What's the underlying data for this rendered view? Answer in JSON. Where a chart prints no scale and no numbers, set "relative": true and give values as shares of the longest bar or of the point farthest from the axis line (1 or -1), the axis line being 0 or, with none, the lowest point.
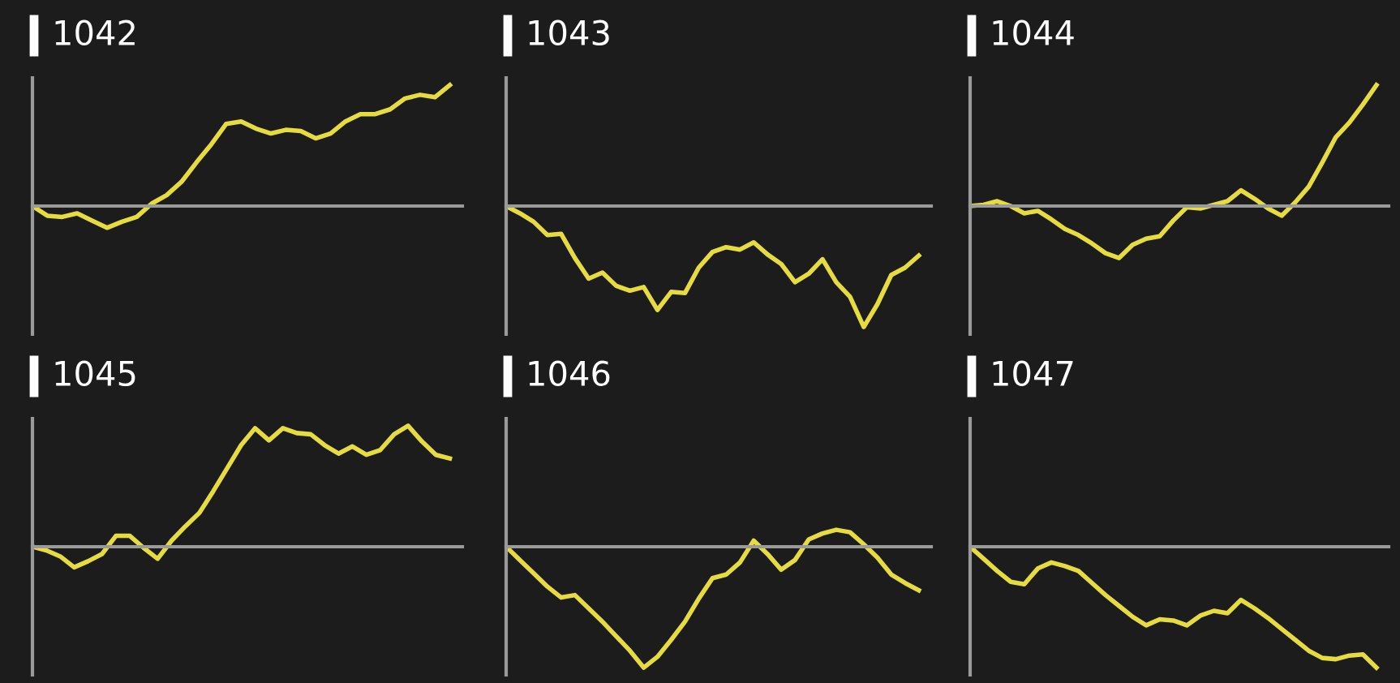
{
  "chart_data": [
    {
      "type": "line",
      "title": "1042",
      "relative": true,
      "categories": [
        null,
        null,
        null,
        null,
        null,
        null,
        null,
        null,
        null,
        null,
        null,
        null,
        null,
        null,
        null,
        null,
        null,
        null,
        null,
        null,
        null,
        null,
        null,
        null,
        null,
        null,
        null,
        null,
        null
      ],
      "series": [
        {
          "color": "#e6dc40",
          "values": [
            0,
            -0.08,
            -0.09,
            -0.06,
            -0.12,
            -0.18,
            -0.13,
            -0.09,
            0.02,
            0.09,
            0.2,
            0.36,
            0.51,
            0.68,
            0.7,
            0.64,
            0.6,
            0.63,
            0.62,
            0.56,
            0.6,
            0.7,
            0.76,
            0.76,
            0.8,
            0.89,
            0.92,
            0.9,
            1
          ]
        }
      ]
    },
    {
      "type": "line",
      "title": "1043",
      "relative": true,
      "categories": [
        null,
        null,
        null,
        null,
        null,
        null,
        null,
        null,
        null,
        null,
        null,
        null,
        null,
        null,
        null,
        null,
        null,
        null,
        null,
        null,
        null,
        null,
        null,
        null,
        null,
        null,
        null,
        null,
        null,
        null,
        null
      ],
      "series": [
        {
          "color": "#e6dc40",
          "values": [
            0,
            -0.06,
            -0.13,
            -0.24,
            -0.23,
            -0.43,
            -0.6,
            -0.55,
            -0.66,
            -0.7,
            -0.67,
            -0.86,
            -0.71,
            -0.72,
            -0.51,
            -0.38,
            -0.34,
            -0.36,
            -0.3,
            -0.4,
            -0.48,
            -0.63,
            -0.56,
            -0.44,
            -0.63,
            -0.75,
            -1,
            -0.81,
            -0.57,
            -0.51,
            -0.41
          ]
        }
      ]
    },
    {
      "type": "line",
      "title": "1044",
      "relative": true,
      "categories": [
        null,
        null,
        null,
        null,
        null,
        null,
        null,
        null,
        null,
        null,
        null,
        null,
        null,
        null,
        null,
        null,
        null,
        null,
        null,
        null,
        null,
        null,
        null,
        null,
        null,
        null,
        null,
        null,
        null,
        null,
        null
      ],
      "series": [
        {
          "color": "#e6dc40",
          "values": [
            0,
            0.01,
            0.04,
            0,
            -0.06,
            -0.04,
            -0.11,
            -0.19,
            -0.24,
            -0.31,
            -0.39,
            -0.43,
            -0.32,
            -0.27,
            -0.25,
            -0.12,
            -0.01,
            -0.02,
            0.01,
            0.04,
            0.13,
            0.06,
            -0.02,
            -0.08,
            0.03,
            0.16,
            0.36,
            0.57,
            0.69,
            0.84,
            1
          ]
        }
      ]
    },
    {
      "type": "line",
      "title": "1045",
      "relative": true,
      "categories": [
        null,
        null,
        null,
        null,
        null,
        null,
        null,
        null,
        null,
        null,
        null,
        null,
        null,
        null,
        null,
        null,
        null,
        null,
        null,
        null,
        null,
        null,
        null,
        null,
        null,
        null,
        null,
        null,
        null,
        null,
        null
      ],
      "series": [
        {
          "color": "#e6dc40",
          "values": [
            0,
            -0.03,
            -0.08,
            -0.17,
            -0.12,
            -0.06,
            0.09,
            0.09,
            -0.01,
            -0.1,
            0.05,
            0.17,
            0.28,
            0.46,
            0.65,
            0.84,
            0.98,
            0.88,
            0.98,
            0.94,
            0.93,
            0.84,
            0.77,
            0.83,
            0.76,
            0.8,
            0.93,
            1,
            0.87,
            0.76,
            0.73
          ]
        }
      ]
    },
    {
      "type": "line",
      "title": "1046",
      "relative": true,
      "categories": [
        null,
        null,
        null,
        null,
        null,
        null,
        null,
        null,
        null,
        null,
        null,
        null,
        null,
        null,
        null,
        null,
        null,
        null,
        null,
        null,
        null,
        null,
        null,
        null,
        null,
        null,
        null,
        null,
        null,
        null,
        null
      ],
      "series": [
        {
          "color": "#e6dc40",
          "values": [
            0,
            -0.11,
            -0.22,
            -0.33,
            -0.42,
            -0.4,
            -0.51,
            -0.62,
            -0.74,
            -0.86,
            -1,
            -0.91,
            -0.77,
            -0.62,
            -0.43,
            -0.26,
            -0.23,
            -0.13,
            0.05,
            -0.06,
            -0.19,
            -0.11,
            0.06,
            0.11,
            0.14,
            0.12,
            0.02,
            -0.09,
            -0.23,
            -0.3,
            -0.36
          ]
        }
      ]
    },
    {
      "type": "line",
      "title": "1047",
      "relative": true,
      "categories": [
        null,
        null,
        null,
        null,
        null,
        null,
        null,
        null,
        null,
        null,
        null,
        null,
        null,
        null,
        null,
        null,
        null,
        null,
        null,
        null,
        null,
        null,
        null,
        null,
        null,
        null,
        null,
        null,
        null,
        null,
        null
      ],
      "series": [
        {
          "color": "#e6dc40",
          "values": [
            0,
            -0.1,
            -0.2,
            -0.29,
            -0.31,
            -0.18,
            -0.13,
            -0.16,
            -0.2,
            -0.3,
            -0.4,
            -0.49,
            -0.58,
            -0.65,
            -0.6,
            -0.61,
            -0.65,
            -0.57,
            -0.53,
            -0.55,
            -0.44,
            -0.51,
            -0.59,
            -0.68,
            -0.77,
            -0.86,
            -0.92,
            -0.93,
            -0.9,
            -0.89,
            -1
          ]
        }
      ]
    }
  ]
}
